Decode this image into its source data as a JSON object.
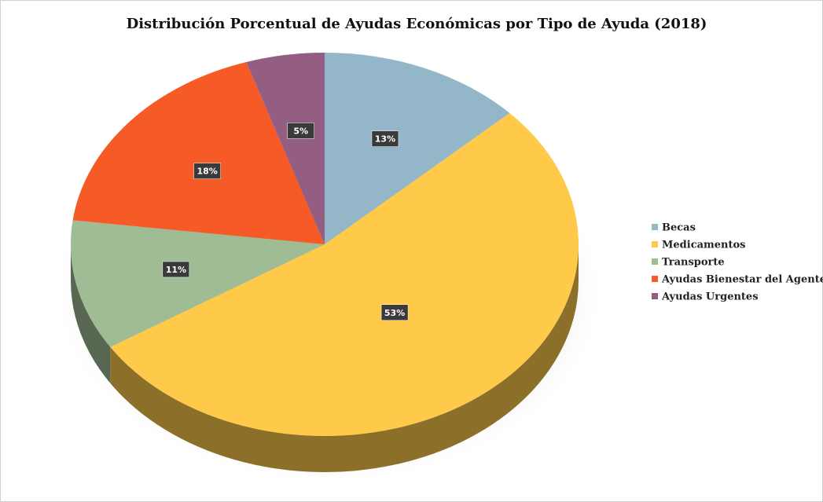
{
  "chart_data": {
    "type": "pie",
    "title": "Distribución Porcentual de Ayudas Económicas por Tipo de Ayuda (2018)",
    "categories": [
      "Becas",
      "Medicamentos",
      "Transporte",
      "Ayudas Bienestar del Agente",
      "Ayudas Urgentes"
    ],
    "values": [
      13,
      53,
      11,
      18,
      5
    ],
    "value_labels": [
      "13%",
      "53%",
      "11%",
      "18%",
      "5%"
    ],
    "colors": [
      "#93b7c9",
      "#ffc94a",
      "#9fbc94",
      "#f65a26",
      "#935e82"
    ],
    "legend": "right"
  }
}
